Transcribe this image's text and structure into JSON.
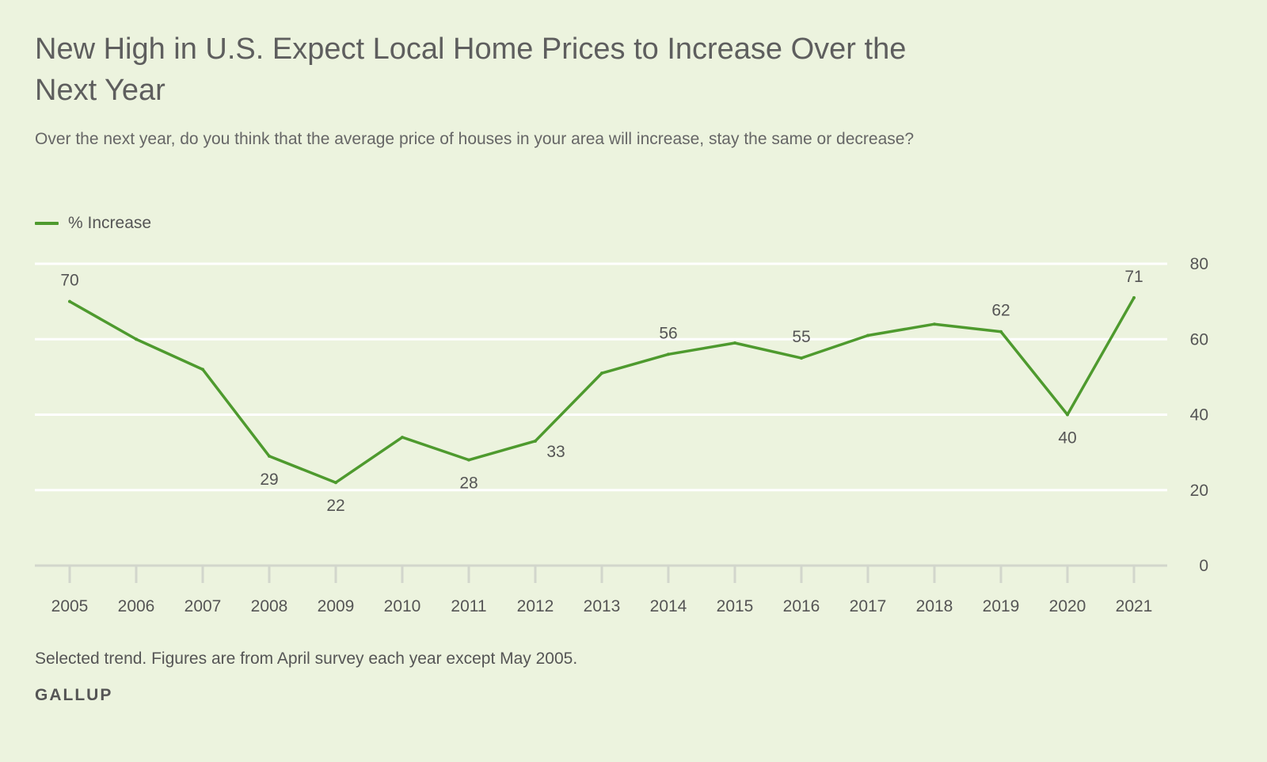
{
  "header": {
    "title": "New High in U.S. Expect Local Home Prices to Increase Over the Next Year",
    "subtitle": "Over the next year, do you think that the average price of houses in your area will increase, stay the same or decrease?"
  },
  "footer": {
    "note": "Selected trend. Figures are from April survey each year except May 2005.",
    "source": "GALLUP"
  },
  "chart_data": {
    "type": "line",
    "title": "New High in U.S. Expect Local Home Prices to Increase Over the Next Year",
    "subtitle": "Over the next year, do you think that the average price of houses in your area will increase, stay the same or decrease?",
    "xlabel": "",
    "ylabel": "",
    "categories": [
      "2005",
      "2006",
      "2007",
      "2008",
      "2009",
      "2010",
      "2011",
      "2012",
      "2013",
      "2014",
      "2015",
      "2016",
      "2017",
      "2018",
      "2019",
      "2020",
      "2021"
    ],
    "series": [
      {
        "name": "% Increase",
        "color": "#4e9a2e",
        "values": [
          70,
          60,
          52,
          29,
          22,
          34,
          28,
          33,
          51,
          56,
          59,
          55,
          61,
          64,
          62,
          40,
          71
        ]
      }
    ],
    "labeled_points": [
      {
        "category": "2005",
        "value": 70,
        "label": "70",
        "position": "above"
      },
      {
        "category": "2008",
        "value": 29,
        "label": "29",
        "position": "below"
      },
      {
        "category": "2009",
        "value": 22,
        "label": "22",
        "position": "below"
      },
      {
        "category": "2011",
        "value": 28,
        "label": "28",
        "position": "below"
      },
      {
        "category": "2012",
        "value": 33,
        "label": "33",
        "position": "below-right"
      },
      {
        "category": "2014",
        "value": 56,
        "label": "56",
        "position": "above"
      },
      {
        "category": "2016",
        "value": 55,
        "label": "55",
        "position": "above"
      },
      {
        "category": "2019",
        "value": 62,
        "label": "62",
        "position": "above"
      },
      {
        "category": "2020",
        "value": 40,
        "label": "40",
        "position": "below"
      },
      {
        "category": "2021",
        "value": 71,
        "label": "71",
        "position": "above"
      }
    ],
    "yticks": [
      0,
      20,
      40,
      60,
      80
    ],
    "ylim": [
      0,
      80
    ],
    "y_axis_side": "right",
    "grid": true,
    "gridline_color": "#ffffff",
    "legend": {
      "placement": "top-left",
      "entries": [
        "% Increase"
      ]
    }
  }
}
